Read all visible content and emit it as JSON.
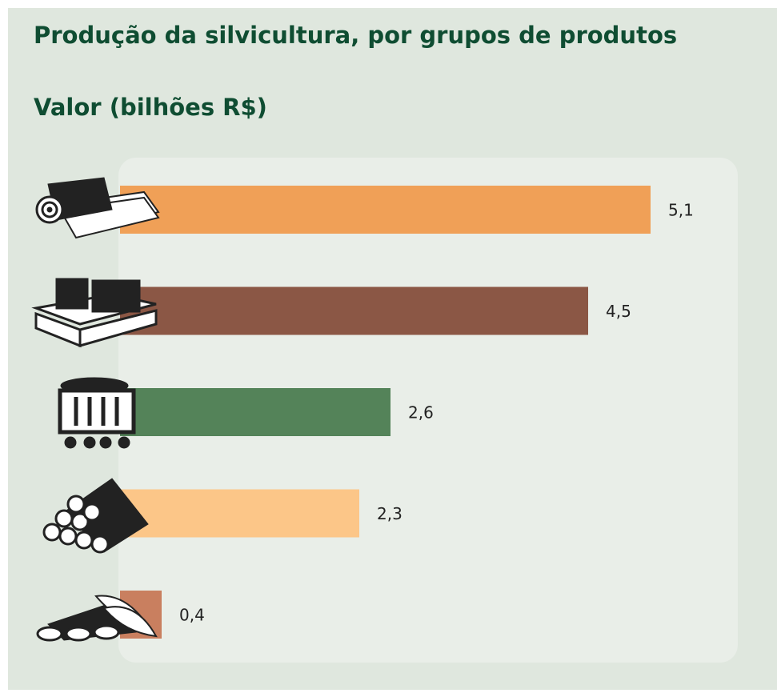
{
  "chart_data": {
    "type": "bar",
    "orientation": "horizontal",
    "title": "Produção da silvicultura, por grupos de produtos",
    "subtitle": "Valor (bilhões R$)",
    "categories": [
      null,
      null,
      null,
      null,
      null
    ],
    "values": [
      5.1,
      4.5,
      2.6,
      2.3,
      0.4
    ],
    "value_labels": [
      "5,1",
      "4,5",
      "2,6",
      "2,3",
      "0,4"
    ],
    "colors": [
      "#f0a057",
      "#8b5745",
      "#548359",
      "#fcc688",
      "#c97f5f"
    ]
  }
}
